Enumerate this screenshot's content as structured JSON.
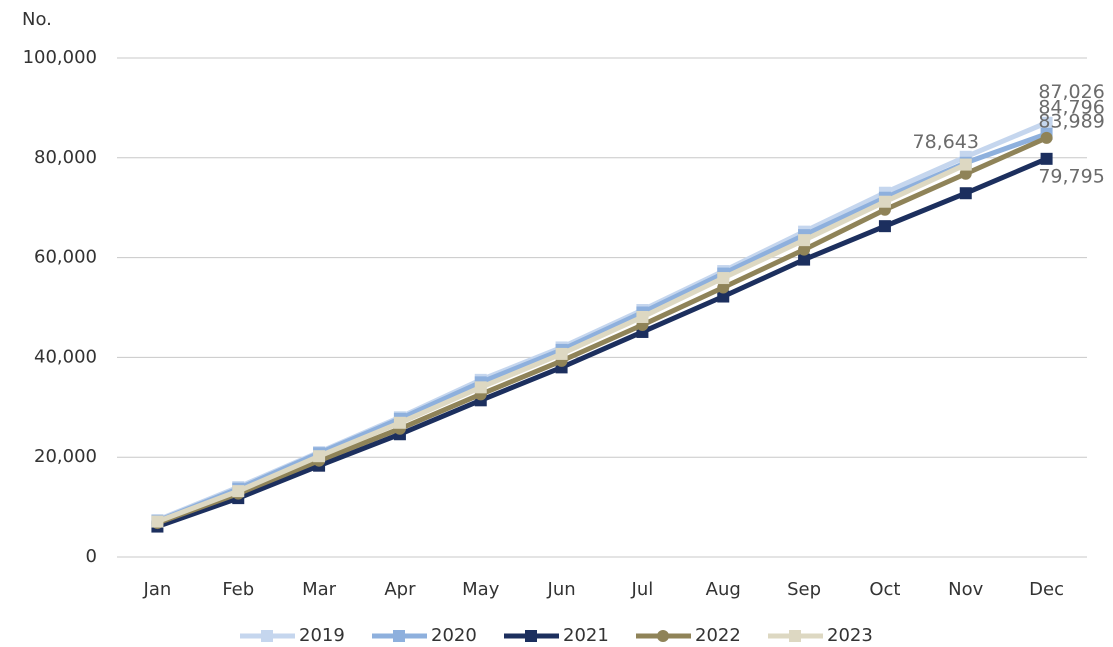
{
  "chart_data": {
    "type": "line",
    "y_axis_label": "No.",
    "categories": [
      "Jan",
      "Feb",
      "Mar",
      "Apr",
      "May",
      "Jun",
      "Jul",
      "Aug",
      "Sep",
      "Oct",
      "Nov",
      "Dec"
    ],
    "series": [
      {
        "name": "2019",
        "color": "#c5d6ee",
        "marker": "square",
        "values": [
          7400,
          14000,
          21000,
          28000,
          35500,
          42000,
          49500,
          57300,
          65200,
          73000,
          80200,
          87026
        ],
        "value_labels": [
          null,
          null,
          null,
          null,
          null,
          null,
          null,
          null,
          null,
          null,
          null,
          "87,026"
        ]
      },
      {
        "name": "2020",
        "color": "#8eb0dd",
        "marker": "square",
        "values": [
          7200,
          13700,
          20800,
          27700,
          35000,
          41500,
          49000,
          56800,
          64500,
          72000,
          79000,
          84796
        ],
        "value_labels": [
          null,
          null,
          null,
          null,
          null,
          null,
          null,
          null,
          null,
          null,
          null,
          "84,796"
        ]
      },
      {
        "name": "2021",
        "color": "#1c2f5e",
        "marker": "square",
        "values": [
          6100,
          11800,
          18300,
          24600,
          31400,
          38000,
          45100,
          52200,
          59600,
          66300,
          72900,
          79795
        ],
        "value_labels": [
          null,
          null,
          null,
          null,
          null,
          null,
          null,
          null,
          null,
          null,
          null,
          "79,795"
        ]
      },
      {
        "name": "2022",
        "color": "#8f8358",
        "marker": "circle",
        "values": [
          6800,
          12700,
          19300,
          25700,
          32600,
          39300,
          46500,
          54000,
          61600,
          69600,
          76800,
          83989
        ],
        "value_labels": [
          null,
          null,
          null,
          null,
          null,
          null,
          null,
          null,
          null,
          null,
          null,
          "83,989"
        ]
      },
      {
        "name": "2023",
        "color": "#ddd8c2",
        "marker": "square",
        "values": [
          7100,
          13200,
          20200,
          26900,
          34000,
          40700,
          48100,
          55900,
          63500,
          71200,
          78643,
          null
        ],
        "value_labels": [
          null,
          null,
          null,
          null,
          null,
          null,
          null,
          null,
          null,
          null,
          "78,643",
          null
        ]
      }
    ],
    "ylim": [
      0,
      100000
    ],
    "yticks": [
      0,
      {
        "value": 20000,
        "label": "20,000"
      },
      {
        "value": 40000,
        "label": "40,000"
      },
      {
        "value": 60000,
        "label": "60,000"
      },
      {
        "value": 80000,
        "label": "80,000"
      },
      {
        "value": 100000,
        "label": "100,000"
      }
    ],
    "grid": true,
    "legend": "bottom"
  }
}
